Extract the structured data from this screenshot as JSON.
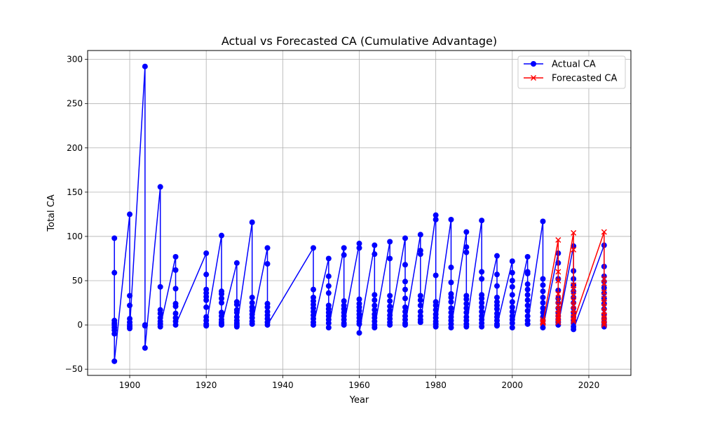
{
  "chart_data": {
    "type": "line",
    "title": "Actual vs Forecasted CA (Cumulative Advantage)",
    "xlabel": "Year",
    "ylabel": "Total CA",
    "xlim": [
      1889,
      2031
    ],
    "ylim": [
      -57,
      310
    ],
    "xticks": [
      1900,
      1920,
      1940,
      1960,
      1980,
      2000,
      2020
    ],
    "yticks": [
      -50,
      0,
      50,
      100,
      150,
      200,
      250,
      300
    ],
    "grid": true,
    "legend_position": "upper-right",
    "colors": {
      "actual": "#0000ff",
      "forecast": "#ff0000"
    },
    "legend": [
      {
        "label": "Actual CA",
        "marker": "circle",
        "color": "#0000ff"
      },
      {
        "label": "Forecasted CA",
        "marker": "x",
        "color": "#ff0000"
      }
    ],
    "series": [
      {
        "name": "Actual CA",
        "marker": "circle",
        "color": "#0000ff",
        "groups": [
          {
            "x": 1896,
            "values": [
              98,
              59,
              5,
              2,
              0,
              -3,
              -6,
              -10,
              -41
            ]
          },
          {
            "x": 1900,
            "values": [
              125,
              33,
              22,
              7,
              3,
              0,
              -2,
              -4
            ]
          },
          {
            "x": 1904,
            "values": [
              292,
              0,
              -1,
              -26
            ]
          },
          {
            "x": 1908,
            "values": [
              156,
              43,
              17,
              13,
              8,
              4,
              1,
              -2
            ]
          },
          {
            "x": 1912,
            "values": [
              77,
              62,
              41,
              24,
              21,
              13,
              8,
              4,
              0
            ]
          },
          {
            "x": 1920,
            "values": [
              81,
              57,
              40,
              36,
              32,
              28,
              20,
              9,
              5,
              1,
              -1
            ]
          },
          {
            "x": 1924,
            "values": [
              101,
              38,
              35,
              30,
              25,
              14,
              10,
              6,
              3,
              1,
              0
            ]
          },
          {
            "x": 1928,
            "values": [
              70,
              26,
              23,
              17,
              14,
              9,
              5,
              2,
              0,
              -2
            ]
          },
          {
            "x": 1932,
            "values": [
              116,
              31,
              25,
              20,
              16,
              12,
              8,
              4,
              1
            ]
          },
          {
            "x": 1936,
            "values": [
              87,
              69,
              24,
              20,
              15,
              11,
              7,
              3,
              0
            ]
          },
          {
            "x": 1948,
            "values": [
              87,
              40,
              31,
              27,
              23,
              19,
              15,
              11,
              7,
              3,
              0
            ]
          },
          {
            "x": 1952,
            "values": [
              75,
              55,
              44,
              36,
              22,
              18,
              14,
              10,
              6,
              2,
              -3
            ]
          },
          {
            "x": 1956,
            "values": [
              87,
              79,
              27,
              22,
              18,
              14,
              10,
              6,
              2,
              0
            ]
          },
          {
            "x": 1960,
            "values": [
              92,
              87,
              29,
              24,
              20,
              16,
              12,
              8,
              4,
              1,
              -9
            ]
          },
          {
            "x": 1964,
            "values": [
              90,
              80,
              34,
              28,
              22,
              17,
              12,
              8,
              4,
              0,
              -3
            ]
          },
          {
            "x": 1968,
            "values": [
              94,
              75,
              33,
              27,
              21,
              16,
              11,
              7,
              3,
              0
            ]
          },
          {
            "x": 1972,
            "values": [
              98,
              68,
              49,
              40,
              30,
              20,
              15,
              10,
              6,
              2,
              0
            ]
          },
          {
            "x": 1976,
            "values": [
              102,
              84,
              80,
              33,
              28,
              22,
              15,
              10,
              6,
              3
            ]
          },
          {
            "x": 1980,
            "values": [
              124,
              119,
              56,
              26,
              22,
              17,
              12,
              8,
              4,
              1,
              -2
            ]
          },
          {
            "x": 1984,
            "values": [
              119,
              65,
              48,
              35,
              31,
              26,
              19,
              14,
              9,
              5,
              1,
              -3
            ]
          },
          {
            "x": 1988,
            "values": [
              105,
              88,
              82,
              33,
              29,
              24,
              19,
              14,
              9,
              5,
              1,
              -2
            ]
          },
          {
            "x": 1992,
            "values": [
              118,
              60,
              52,
              34,
              30,
              25,
              20,
              15,
              10,
              6,
              2,
              -2
            ]
          },
          {
            "x": 1996,
            "values": [
              78,
              57,
              44,
              31,
              26,
              22,
              18,
              13,
              9,
              5,
              1,
              -1
            ]
          },
          {
            "x": 2000,
            "values": [
              72,
              59,
              50,
              43,
              34,
              26,
              20,
              15,
              10,
              6,
              2,
              -3
            ]
          },
          {
            "x": 2004,
            "values": [
              77,
              60,
              58,
              46,
              40,
              34,
              28,
              22,
              16,
              10,
              5,
              1
            ]
          },
          {
            "x": 2008,
            "values": [
              117,
              52,
              45,
              38,
              31,
              25,
              19,
              14,
              9,
              5,
              1,
              -3
            ]
          },
          {
            "x": 2012,
            "values": [
              81,
              70,
              52,
              39,
              30,
              25,
              19,
              14,
              10,
              6,
              3,
              0
            ]
          },
          {
            "x": 2016,
            "values": [
              89,
              61,
              52,
              45,
              38,
              31,
              25,
              19,
              14,
              9,
              5,
              2,
              -2,
              -5
            ]
          },
          {
            "x": 2024,
            "values": [
              90,
              66,
              55,
              49,
              42,
              36,
              30,
              24,
              18,
              12,
              7,
              3,
              0,
              -2
            ]
          }
        ]
      },
      {
        "name": "Forecasted CA",
        "marker": "x",
        "color": "#ff0000",
        "groups": [
          {
            "x": 2008,
            "values": [
              6,
              4,
              3,
              2
            ]
          },
          {
            "x": 2012,
            "values": [
              96,
              60,
              50,
              35,
              28,
              22,
              17,
              13,
              10,
              7,
              5,
              3
            ]
          },
          {
            "x": 2016,
            "values": [
              104,
              85,
              45,
              40,
              33,
              27,
              22,
              17,
              13,
              9,
              6,
              4
            ]
          },
          {
            "x": 2024,
            "values": [
              105,
              52,
              47,
              37,
              30,
              25,
              20,
              15,
              11,
              8,
              5,
              2,
              0
            ]
          }
        ]
      }
    ]
  }
}
